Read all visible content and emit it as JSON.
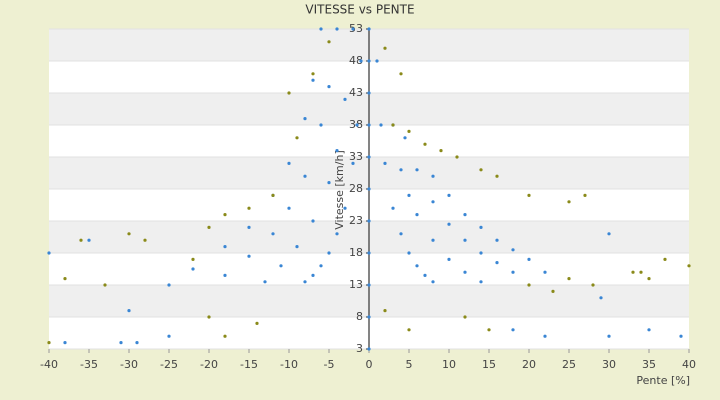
{
  "chart_data": {
    "type": "scatter",
    "title": "VITESSE vs PENTE",
    "x_label": "Pente [%]",
    "y_label": "Vitesse [km/h]",
    "xlim": [
      -40,
      40
    ],
    "xticks": [
      -40,
      -35,
      -30,
      -25,
      -20,
      -15,
      -10,
      -5,
      0,
      5,
      10,
      15,
      20,
      25,
      30,
      35,
      40
    ],
    "ylim": [
      3,
      53
    ],
    "yticks": [
      3,
      8,
      13,
      18,
      23,
      28,
      33,
      38,
      43,
      48,
      53
    ],
    "grid": true,
    "series": [
      {
        "color": "#3a86d4",
        "x": [
          1,
          1.5,
          2,
          3,
          4,
          5,
          6,
          7,
          8,
          3,
          4,
          5,
          6,
          8,
          10,
          12,
          14,
          4.5,
          6,
          8,
          10,
          12,
          14,
          16,
          18,
          8,
          10,
          12,
          14,
          16,
          18,
          20,
          22,
          -1,
          -1.5,
          -2,
          -3,
          -4,
          -5,
          -6,
          -7,
          -8,
          -2,
          -3,
          -4,
          -5,
          -7,
          -9,
          -11,
          -13,
          -4,
          -5,
          -6,
          -8,
          -10,
          -12,
          -15,
          -18,
          -6,
          -7,
          -8,
          -10,
          -12,
          -15,
          -18,
          -22,
          -25,
          0,
          0,
          0,
          0,
          0,
          0,
          0,
          0,
          0,
          0,
          0,
          -38,
          -31,
          -29,
          -30,
          -35,
          -40,
          -25,
          30,
          22,
          18,
          35,
          39,
          29,
          30
        ],
        "y": [
          48,
          38,
          32,
          25,
          21,
          18,
          16,
          14.5,
          13.5,
          38,
          31,
          27,
          24,
          20,
          17,
          15,
          13.5,
          36,
          31,
          26,
          22.5,
          20,
          18,
          16.5,
          15,
          30,
          27,
          24,
          22,
          20,
          18.5,
          17,
          15,
          48,
          38,
          32,
          25,
          21,
          18,
          16,
          14.5,
          13.5,
          53,
          42,
          34,
          29,
          23,
          19,
          16,
          13.5,
          53,
          44,
          38,
          30,
          25,
          21,
          17.5,
          14.5,
          53,
          45,
          39,
          32,
          27,
          22,
          19,
          15.5,
          13,
          3,
          8,
          13,
          18,
          23,
          28,
          33,
          38,
          43,
          48,
          53,
          4,
          4,
          4,
          9,
          20,
          18,
          5,
          5,
          5,
          6,
          6,
          5,
          11,
          21
        ]
      },
      {
        "color": "#8a8a1a",
        "x": [
          -38,
          -33,
          -36,
          -30,
          -28,
          -22,
          -20,
          -18,
          -15,
          -12,
          -9,
          -10,
          -7,
          -5,
          2,
          4,
          3,
          5,
          7,
          9,
          11,
          14,
          16,
          20,
          25,
          27,
          33,
          34,
          37,
          40,
          -40,
          2,
          12,
          15,
          20,
          23,
          25,
          28,
          35,
          5,
          -20,
          -14,
          -18
        ],
        "y": [
          14,
          13,
          20,
          21,
          20,
          17,
          22,
          24,
          25,
          27,
          36,
          43,
          46,
          51,
          50,
          46,
          38,
          37,
          35,
          34,
          33,
          31,
          30,
          27,
          26,
          27,
          15,
          15,
          17,
          16,
          4,
          9,
          8,
          6,
          13,
          12,
          14,
          13,
          14,
          6,
          8,
          7,
          5
        ]
      }
    ]
  }
}
